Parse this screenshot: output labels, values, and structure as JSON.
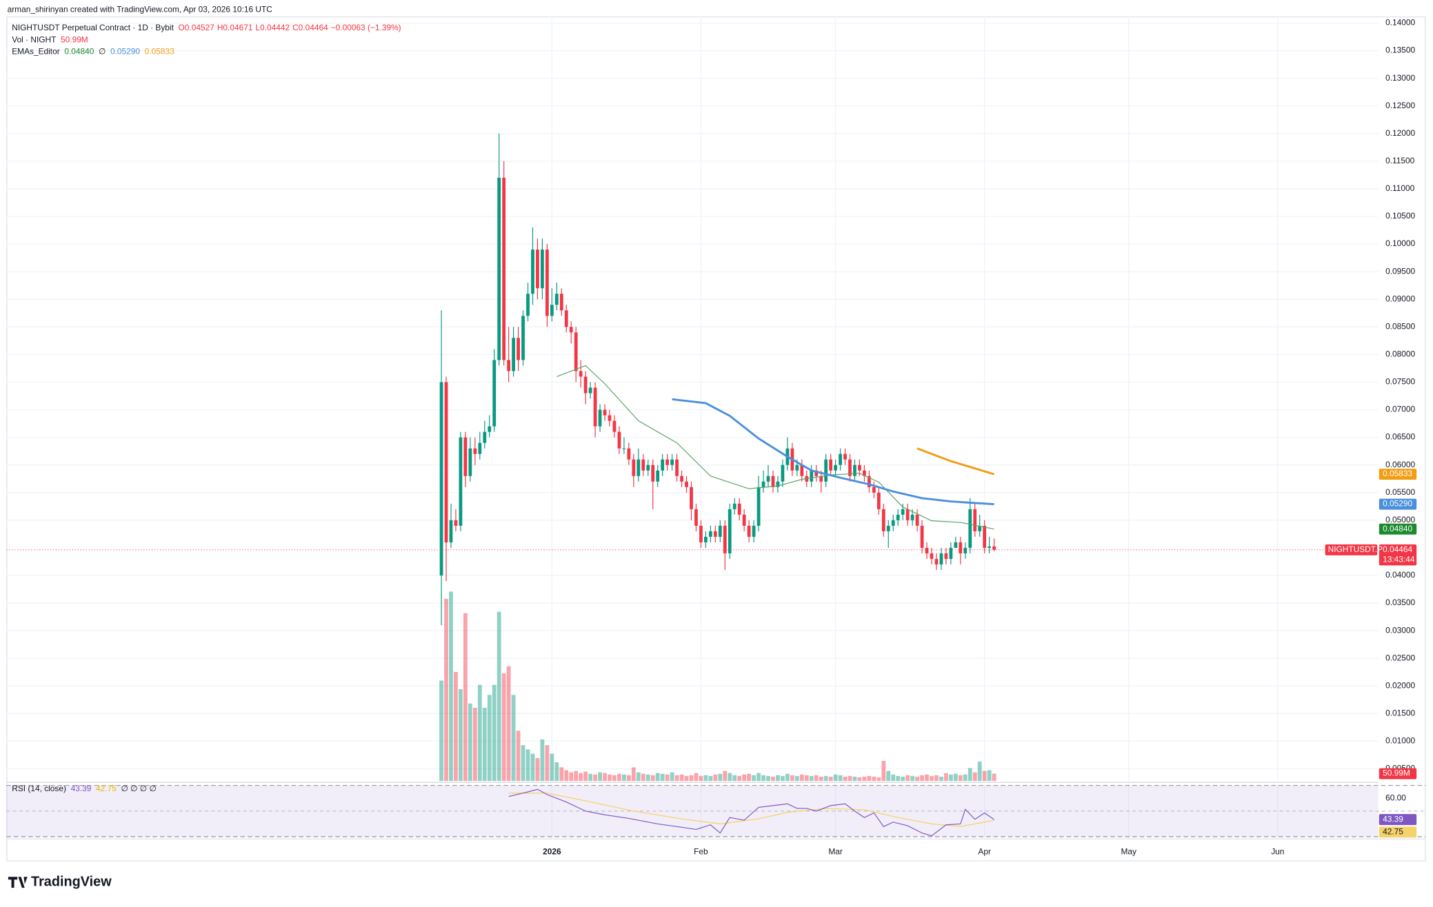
{
  "header": {
    "credit": "arman_shirinyan created with TradingView.com, Apr 03, 2026 10:16 UTC",
    "brand": "TradingView"
  },
  "chart_data": {
    "type": "candlestick",
    "title": "NIGHTUSDT Perpetual Contract · 1D · Bybit",
    "ohlc_text": [
      "O0.04527",
      "H0.04671",
      "L0.04442",
      "C0.04464",
      "−0.00063 (−1.39%)"
    ],
    "up_color": "#089981",
    "down_color": "#f23645",
    "xlim": [
      -90.5,
      194.9
    ],
    "xticks": [
      {
        "value": 23,
        "label": "2026"
      },
      {
        "value": 54,
        "label": "Feb"
      },
      {
        "value": 82,
        "label": "Mar"
      },
      {
        "value": 113,
        "label": "Apr"
      },
      {
        "value": 143,
        "label": "May"
      },
      {
        "value": 174,
        "label": "Jun"
      }
    ],
    "ylim": [
      0.0028,
      0.1412
    ],
    "yticks": [
      {
        "value": 0.005,
        "label": "0.00500"
      },
      {
        "value": 0.01,
        "label": "0.01000"
      },
      {
        "value": 0.015,
        "label": "0.01500"
      },
      {
        "value": 0.02,
        "label": "0.02000"
      },
      {
        "value": 0.025,
        "label": "0.02500"
      },
      {
        "value": 0.03,
        "label": "0.03000"
      },
      {
        "value": 0.035,
        "label": "0.03500"
      },
      {
        "value": 0.04,
        "label": "0.04000"
      },
      {
        "value": 0.05,
        "label": "0.05000"
      },
      {
        "value": 0.055,
        "label": "0.05500"
      },
      {
        "value": 0.06,
        "label": "0.06000"
      },
      {
        "value": 0.065,
        "label": "0.06500"
      },
      {
        "value": 0.07,
        "label": "0.07000"
      },
      {
        "value": 0.075,
        "label": "0.07500"
      },
      {
        "value": 0.08,
        "label": "0.08000"
      },
      {
        "value": 0.085,
        "label": "0.08500"
      },
      {
        "value": 0.09,
        "label": "0.09000"
      },
      {
        "value": 0.095,
        "label": "0.09500"
      },
      {
        "value": 0.1,
        "label": "0.10000"
      },
      {
        "value": 0.105,
        "label": "0.10500"
      },
      {
        "value": 0.11,
        "label": "0.11000"
      },
      {
        "value": 0.115,
        "label": "0.11500"
      },
      {
        "value": 0.12,
        "label": "0.12000"
      },
      {
        "value": 0.125,
        "label": "0.12500"
      },
      {
        "value": 0.13,
        "label": "0.13000"
      },
      {
        "value": 0.135,
        "label": "0.13500"
      },
      {
        "value": 0.14,
        "label": "0.14000"
      }
    ],
    "grid": true,
    "open": [
      0.04,
      0.075,
      0.046,
      0.05,
      0.049,
      0.065,
      0.058,
      0.063,
      0.062,
      0.064,
      0.066,
      0.067,
      0.079,
      0.112,
      0.079,
      0.077,
      0.083,
      0.079,
      0.087,
      0.091,
      0.099,
      0.092,
      0.099,
      0.087,
      0.089,
      0.091,
      0.088,
      0.085,
      0.084,
      0.077,
      0.076,
      0.073,
      0.074,
      0.067,
      0.07,
      0.069,
      0.068,
      0.066,
      0.063,
      0.063,
      0.061,
      0.058,
      0.061,
      0.059,
      0.06,
      0.057,
      0.059,
      0.061,
      0.06,
      0.061,
      0.058,
      0.057,
      0.056,
      0.052,
      0.049,
      0.046,
      0.047,
      0.048,
      0.047,
      0.049,
      0.044,
      0.052,
      0.053,
      0.051,
      0.049,
      0.047,
      0.049,
      0.056,
      0.057,
      0.058,
      0.056,
      0.057,
      0.06,
      0.063,
      0.059,
      0.06,
      0.058,
      0.057,
      0.059,
      0.058,
      0.057,
      0.061,
      0.059,
      0.06,
      0.062,
      0.061,
      0.058,
      0.06,
      0.059,
      0.058,
      0.056,
      0.055,
      0.052,
      0.048,
      0.049,
      0.05,
      0.051,
      0.052,
      0.05,
      0.051,
      0.049,
      0.045,
      0.044,
      0.043,
      0.042,
      0.044,
      0.043,
      0.045,
      0.046,
      0.044,
      0.045,
      0.052,
      0.048,
      0.049,
      0.045,
      0.04527
    ],
    "high": [
      0.088,
      0.076,
      0.053,
      0.052,
      0.066,
      0.066,
      0.065,
      0.065,
      0.066,
      0.068,
      0.069,
      0.081,
      0.12,
      0.115,
      0.085,
      0.085,
      0.085,
      0.088,
      0.093,
      0.103,
      0.101,
      0.101,
      0.1,
      0.092,
      0.093,
      0.092,
      0.089,
      0.086,
      0.085,
      0.079,
      0.077,
      0.075,
      0.075,
      0.071,
      0.071,
      0.07,
      0.069,
      0.067,
      0.065,
      0.064,
      0.062,
      0.063,
      0.062,
      0.061,
      0.061,
      0.06,
      0.062,
      0.062,
      0.062,
      0.062,
      0.059,
      0.058,
      0.057,
      0.053,
      0.05,
      0.048,
      0.049,
      0.049,
      0.05,
      0.05,
      0.053,
      0.054,
      0.054,
      0.052,
      0.05,
      0.05,
      0.058,
      0.059,
      0.06,
      0.059,
      0.058,
      0.061,
      0.065,
      0.064,
      0.061,
      0.061,
      0.059,
      0.06,
      0.06,
      0.059,
      0.062,
      0.062,
      0.061,
      0.063,
      0.063,
      0.062,
      0.061,
      0.061,
      0.06,
      0.059,
      0.057,
      0.056,
      0.053,
      0.05,
      0.051,
      0.052,
      0.053,
      0.053,
      0.052,
      0.052,
      0.05,
      0.046,
      0.045,
      0.044,
      0.045,
      0.045,
      0.046,
      0.047,
      0.047,
      0.046,
      0.054,
      0.053,
      0.051,
      0.05,
      0.047,
      0.04671
    ],
    "low": [
      0.031,
      0.039,
      0.045,
      0.048,
      0.048,
      0.056,
      0.057,
      0.06,
      0.061,
      0.063,
      0.065,
      0.066,
      0.078,
      0.078,
      0.075,
      0.076,
      0.077,
      0.078,
      0.086,
      0.089,
      0.09,
      0.09,
      0.085,
      0.086,
      0.088,
      0.087,
      0.084,
      0.082,
      0.075,
      0.074,
      0.071,
      0.072,
      0.065,
      0.066,
      0.068,
      0.067,
      0.065,
      0.062,
      0.062,
      0.06,
      0.056,
      0.057,
      0.058,
      0.058,
      0.052,
      0.056,
      0.058,
      0.059,
      0.059,
      0.057,
      0.056,
      0.055,
      0.05,
      0.048,
      0.045,
      0.045,
      0.046,
      0.046,
      0.046,
      0.041,
      0.043,
      0.051,
      0.05,
      0.048,
      0.046,
      0.046,
      0.048,
      0.055,
      0.056,
      0.055,
      0.055,
      0.056,
      0.059,
      0.058,
      0.058,
      0.057,
      0.056,
      0.056,
      0.057,
      0.055,
      0.056,
      0.058,
      0.058,
      0.059,
      0.06,
      0.057,
      0.057,
      0.058,
      0.057,
      0.055,
      0.054,
      0.051,
      0.047,
      0.045,
      0.048,
      0.049,
      0.05,
      0.049,
      0.049,
      0.048,
      0.044,
      0.043,
      0.042,
      0.041,
      0.041,
      0.042,
      0.042,
      0.045,
      0.042,
      0.043,
      0.044,
      0.047,
      0.047,
      0.044,
      0.044,
      0.04442
    ],
    "close": [
      0.075,
      0.046,
      0.05,
      0.049,
      0.065,
      0.058,
      0.063,
      0.062,
      0.064,
      0.066,
      0.067,
      0.079,
      0.112,
      0.079,
      0.077,
      0.083,
      0.079,
      0.087,
      0.091,
      0.099,
      0.092,
      0.099,
      0.087,
      0.089,
      0.091,
      0.088,
      0.085,
      0.084,
      0.077,
      0.076,
      0.073,
      0.074,
      0.067,
      0.07,
      0.069,
      0.068,
      0.066,
      0.063,
      0.063,
      0.061,
      0.058,
      0.061,
      0.059,
      0.06,
      0.057,
      0.059,
      0.061,
      0.06,
      0.061,
      0.058,
      0.057,
      0.056,
      0.052,
      0.049,
      0.046,
      0.047,
      0.048,
      0.047,
      0.049,
      0.044,
      0.052,
      0.053,
      0.051,
      0.049,
      0.047,
      0.049,
      0.056,
      0.057,
      0.058,
      0.056,
      0.057,
      0.06,
      0.063,
      0.059,
      0.06,
      0.058,
      0.057,
      0.059,
      0.058,
      0.057,
      0.061,
      0.059,
      0.06,
      0.062,
      0.061,
      0.058,
      0.06,
      0.059,
      0.058,
      0.056,
      0.055,
      0.052,
      0.048,
      0.049,
      0.05,
      0.051,
      0.052,
      0.05,
      0.051,
      0.049,
      0.045,
      0.044,
      0.043,
      0.042,
      0.044,
      0.043,
      0.045,
      0.046,
      0.044,
      0.045,
      0.052,
      0.048,
      0.049,
      0.045,
      0.04527,
      0.04464
    ],
    "last_price_label": "0.04464",
    "countdown": "13:43:44",
    "symbol_label": "NIGHTUSDT.P",
    "volume": {
      "name": "Vol · NIGHT",
      "value_label": "50.99M",
      "ylim": [
        0,
        1592
      ],
      "values": [
        700,
        1270,
        1320,
        760,
        640,
        1170,
        540,
        510,
        670,
        510,
        600,
        670,
        1180,
        750,
        800,
        600,
        350,
        250,
        220,
        190,
        160,
        290,
        250,
        190,
        130,
        95,
        75,
        60,
        70,
        55,
        65,
        50,
        45,
        60,
        55,
        45,
        40,
        50,
        45,
        40,
        95,
        60,
        50,
        45,
        40,
        55,
        50,
        45,
        60,
        40,
        45,
        35,
        40,
        55,
        35,
        40,
        35,
        45,
        50,
        70,
        55,
        40,
        35,
        45,
        50,
        40,
        55,
        40,
        35,
        30,
        40,
        35,
        50,
        40,
        35,
        45,
        40,
        35,
        40,
        30,
        35,
        30,
        45,
        40,
        30,
        35,
        30,
        25,
        30,
        35,
        30,
        25,
        140,
        70,
        45,
        35,
        30,
        40,
        35,
        30,
        40,
        45,
        35,
        40,
        30,
        55,
        45,
        50,
        40,
        45,
        90,
        60,
        135,
        70,
        75,
        50.99
      ]
    },
    "ema_indicator": "EMAs_Editor",
    "ema_hidden": "∅",
    "emas": [
      {
        "color": "#5aa469",
        "value_label": "0.04840",
        "badge_color": "#1e8a2e",
        "x": [
          24,
          30,
          34,
          41,
          49,
          56,
          64,
          70,
          75,
          81,
          87,
          91,
          96,
          102,
          108,
          115
        ],
        "values": [
          0.076,
          0.078,
          0.0747,
          0.068,
          0.064,
          0.058,
          0.0557,
          0.0562,
          0.0574,
          0.0582,
          0.0585,
          0.0569,
          0.0524,
          0.0499,
          0.0496,
          0.0484
        ]
      },
      {
        "color": "#4a8fdc",
        "value_label": "0.05290",
        "badge_color": "#4a8fdc",
        "x": [
          48,
          55,
          60,
          66,
          72,
          77,
          83,
          89,
          94,
          100,
          106,
          115
        ],
        "values": [
          0.0719,
          0.0712,
          0.0689,
          0.0648,
          0.0615,
          0.059,
          0.0577,
          0.0565,
          0.0552,
          0.054,
          0.0534,
          0.0529
        ]
      },
      {
        "color": "#f29d12",
        "value_label": "0.05833",
        "badge_color": "#f29d12",
        "x": [
          99,
          106,
          115
        ],
        "values": [
          0.063,
          0.0607,
          0.05833
        ]
      }
    ],
    "rsi": {
      "title": "RSI (14, close)",
      "value_label": "43.39",
      "ma_label": "42.75",
      "hidden": "∅ ∅ ∅ ∅",
      "ylim": [
        28.6,
        71.4
      ],
      "yticks": [
        {
          "value": 60,
          "label": "60.00"
        }
      ],
      "bands": [
        70,
        50,
        30
      ],
      "color": "#7e57c2",
      "ma_color": "#f5d36b",
      "x": [
        14,
        18,
        20,
        22,
        26,
        30,
        34,
        39,
        45,
        49,
        53,
        56,
        58,
        60,
        63,
        66,
        69,
        72,
        74,
        76,
        78,
        81,
        84,
        86,
        88,
        90,
        92,
        94,
        97,
        100,
        102,
        105,
        108,
        109,
        111,
        113,
        115
      ],
      "values": [
        61.4,
        65,
        67,
        62.9,
        57.1,
        50,
        47.1,
        44.3,
        40,
        37.9,
        35.7,
        39.3,
        32.9,
        45,
        42.9,
        52.9,
        54.3,
        55.7,
        52.1,
        52.1,
        50,
        54.3,
        55.7,
        50,
        45,
        48.6,
        37.9,
        41.4,
        38.6,
        32.9,
        30.7,
        39.3,
        40,
        51.4,
        43.6,
        48.6,
        43.39
      ],
      "ma_x": [
        14,
        22,
        30,
        40,
        50,
        58,
        66,
        72,
        80,
        88,
        95,
        102,
        108,
        115
      ],
      "ma_values": [
        64,
        64,
        58,
        50,
        44,
        40,
        44,
        49,
        52,
        51,
        45,
        40,
        38,
        42.75
      ]
    }
  }
}
